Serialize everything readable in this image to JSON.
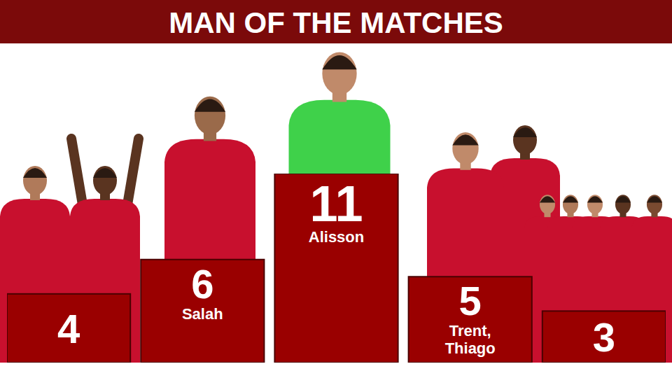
{
  "chart_data": {
    "type": "bar",
    "title": "MAN OF THE MATCHES",
    "categories": [
      null,
      "Salah",
      "Alisson",
      "Trent, Thiago",
      null
    ],
    "values": [
      4,
      6,
      11,
      5,
      3
    ],
    "color": "#9a0000",
    "ylim": [
      0,
      11
    ],
    "tick_labels": false,
    "data_labels": true
  }
}
